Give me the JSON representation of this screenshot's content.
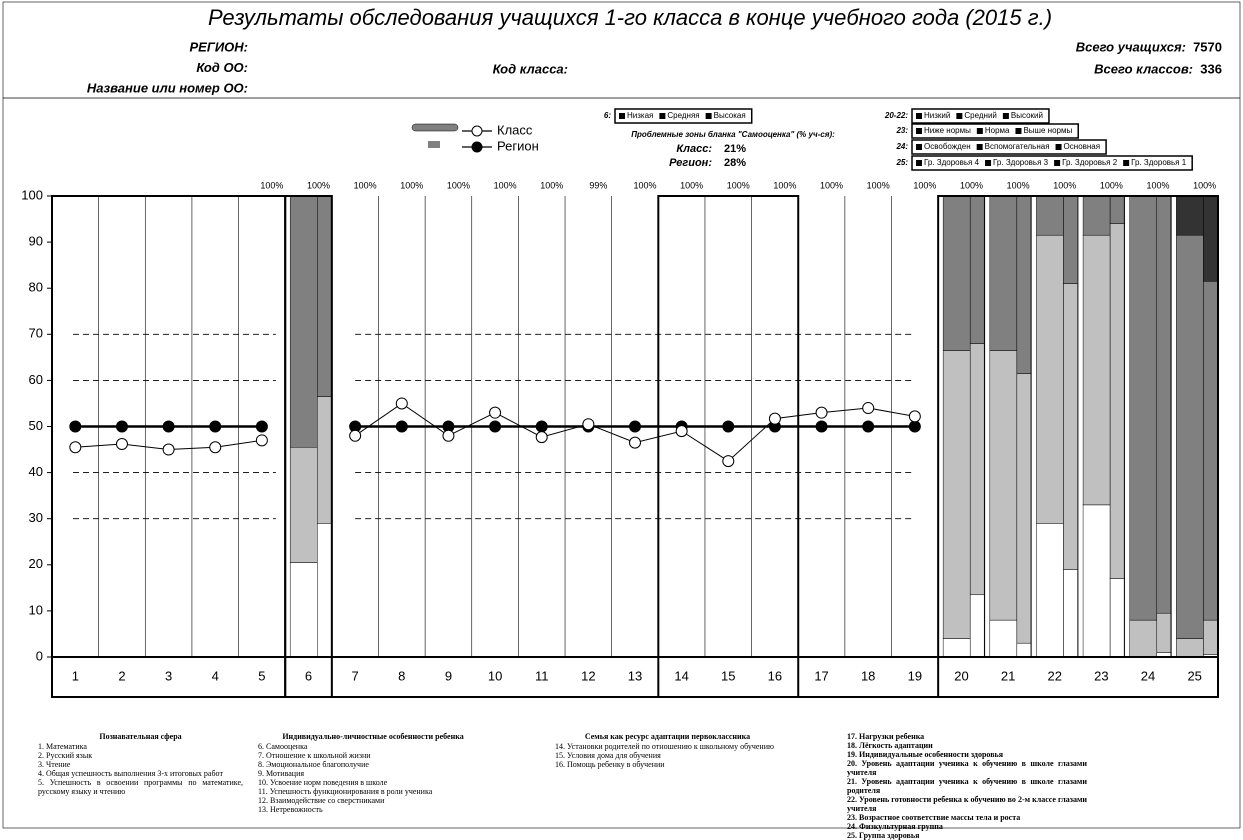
{
  "header": {
    "title": "Результаты обследования учащихся 1-го класса в конце учебного года (2015 г.)",
    "left": [
      "РЕГИОН:",
      "Код ОО:",
      "Название или номер ОО:"
    ],
    "class_code": "Код класса:",
    "right": [
      {
        "label": "Всего учащихся:",
        "value": 7570
      },
      {
        "label": "Всего классов:",
        "value": 336
      }
    ]
  },
  "legend_boxes": [
    {
      "key": "6:",
      "items": [
        "Низкая",
        "Средняя",
        "Высокая"
      ]
    },
    {
      "key": "20-22:",
      "items": [
        "Низкий",
        "Средний",
        "Высокий"
      ]
    },
    {
      "key": "23:",
      "items": [
        "Ниже нормы",
        "Норма",
        "Выше нормы"
      ]
    },
    {
      "key": "24:",
      "items": [
        "Освобожден",
        "Вспомогательная",
        "Основная"
      ]
    },
    {
      "key": "25:",
      "items": [
        "Гр. Здоровья 4",
        "Гр. Здоровья 3",
        "Гр. Здоровья 2",
        "Гр. Здоровья 1"
      ]
    }
  ],
  "problem_zones": {
    "title": "Проблемные зоны бланка \"Самооценка\" (% уч-ся):",
    "rows": [
      {
        "label": "Класс:",
        "value": "21%"
      },
      {
        "label": "Регион:",
        "value": "28%"
      }
    ]
  },
  "chart_data": {
    "type": "combo",
    "categories": [
      "1",
      "2",
      "3",
      "4",
      "5",
      "6",
      "7",
      "8",
      "9",
      "10",
      "11",
      "12",
      "13",
      "14",
      "15",
      "16",
      "17",
      "18",
      "19",
      "20",
      "21",
      "22",
      "23",
      "24",
      "25"
    ],
    "series": [
      {
        "name": "Класс",
        "color": "#000000",
        "marker_fill": "#ffffff",
        "values": [
          45.5,
          46.2,
          45,
          45.5,
          47,
          null,
          48,
          55,
          48,
          53,
          47.7,
          50.5,
          46.5,
          49,
          42.5,
          51.7,
          53,
          54,
          52.2,
          null,
          null,
          null,
          null,
          null,
          null
        ]
      },
      {
        "name": "Регион",
        "color": "#000000",
        "marker_fill": "#000000",
        "values": [
          50,
          50,
          50,
          50,
          50,
          null,
          50,
          50,
          50,
          50,
          50,
          50,
          50,
          50,
          50,
          50,
          50,
          50,
          50,
          null,
          null,
          null,
          null,
          null,
          null
        ]
      }
    ],
    "class_segments": [
      null,
      null,
      null,
      null,
      null,
      [
        20.5,
        25,
        54.5
      ],
      null,
      null,
      null,
      null,
      null,
      null,
      null,
      null,
      null,
      null,
      null,
      null,
      null,
      [
        4,
        62.5,
        33.5
      ],
      [
        8,
        58.5,
        33.5
      ],
      [
        29,
        62.5,
        8.5
      ],
      [
        33,
        58.5,
        8.5
      ],
      [
        0,
        8,
        92
      ],
      [
        0,
        4,
        87.5,
        8.5
      ]
    ],
    "region_segments": [
      null,
      null,
      null,
      null,
      null,
      [
        29,
        27.5,
        43.5
      ],
      null,
      null,
      null,
      null,
      null,
      null,
      null,
      null,
      null,
      null,
      null,
      null,
      null,
      [
        13.5,
        54.5,
        32
      ],
      [
        3,
        58.5,
        38.5
      ],
      [
        19,
        62,
        19
      ],
      [
        17,
        77,
        6
      ],
      [
        1,
        8.5,
        90.5
      ],
      [
        0.5,
        7.5,
        73.5,
        18.5
      ]
    ],
    "segment_colors": [
      "#ffffff",
      "#c0c0c0",
      "#808080",
      "#333333"
    ],
    "top_labels": [
      null,
      null,
      null,
      null,
      "100%",
      "100%",
      "100%",
      "100%",
      "100%",
      "100%",
      "100%",
      "99%",
      "100%",
      "100%",
      "100%",
      "100%",
      "100%",
      "100%",
      "100%",
      "100%",
      "100%",
      "100%",
      "100%",
      "100%",
      "100%"
    ],
    "reference_lines": [
      30,
      40,
      60,
      70
    ],
    "ylim": [
      0,
      100
    ],
    "yticks": [
      0,
      10,
      20,
      30,
      40,
      50,
      60,
      70,
      80,
      90,
      100
    ]
  },
  "footer": [
    {
      "heading": "Познавательная сфера",
      "items": [
        "1. Математика",
        "2. Русский язык",
        "3. Чтение",
        "4. Общая успешность выполнения 3-х итоговых работ",
        "5. Успешность в освоении программы по математике, русскому языку и чтению"
      ]
    },
    {
      "heading": "Индивидуально-личностные особенности ребенка",
      "items": [
        "6. Самооценка",
        "7. Отношение к школьной жизни",
        "8. Эмоциональное благополучие",
        "9. Мотивация",
        "10. Усвоение норм поведения в школе",
        "11. Успешность функционирования в роли ученика",
        "12. Взаимодействие со сверстниками",
        "13. Нетревожность"
      ]
    },
    {
      "heading": "Семья как ресурс адаптации первоклассника",
      "items": [
        "14. Установки родителей по отношению к школьному обучению",
        "15. Условия дома для обучения",
        "16. Помощь ребенку в обучении"
      ]
    },
    {
      "heading": null,
      "items": [
        "17. Нагрузки ребенка",
        "18. Лёгкость адаптации",
        "19. Индивидуальные особенности здоровья",
        "20. Уровень адаптации ученика к обучению в школе глазами учителя",
        "21. Уровень адаптации ученика к обучению в школе глазами родителя",
        "22. Уровень готовности ребенка к обучению во 2-м классе глазами учителя",
        "23. Возрастное соответствие массы тела и роста",
        "24. Физкультурная группа",
        "25. Группа здоровья"
      ]
    }
  ]
}
